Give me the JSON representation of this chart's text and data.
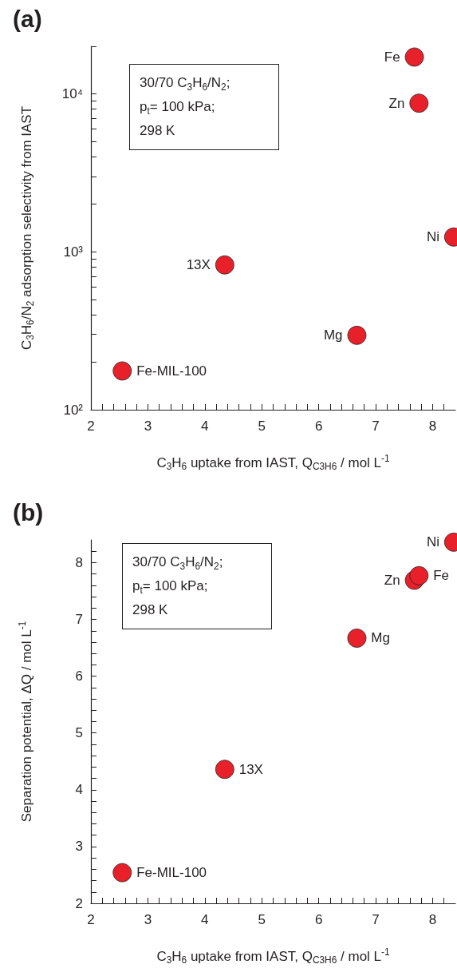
{
  "chart_data": [
    {
      "type": "scatter",
      "marker": "circle",
      "log": "y",
      "xlabel": "C$_{3}$H$_{6}$ uptake from IAST, Q$_{C3H6}$ / mol L$^{-1}$",
      "ylabel": "C$_{3}$H$_{6}$/N$_{2}$ adsorption selectivity from IAST",
      "annotations": [
        "(a)",
        "30/70 C$_{3}$H$_{6}$/N$_{2}$;\np$_{t}$= 100 kPa;\n298 K"
      ],
      "xlim": [
        2,
        8.4
      ],
      "xticks": [
        2,
        {
          "value": 2.2,
          "label": null
        },
        {
          "value": 2.4,
          "label": null
        },
        {
          "value": 2.6,
          "label": null
        },
        {
          "value": 2.8,
          "label": null
        },
        3,
        {
          "value": 3.2,
          "label": null
        },
        {
          "value": 3.4,
          "label": null
        },
        {
          "value": 3.6,
          "label": null
        },
        {
          "value": 3.8,
          "label": null
        },
        4,
        {
          "value": 4.2,
          "label": null
        },
        {
          "value": 4.4,
          "label": null
        },
        {
          "value": 4.6,
          "label": null
        },
        {
          "value": 4.8,
          "label": null
        },
        5,
        {
          "value": 5.2,
          "label": null
        },
        {
          "value": 5.4,
          "label": null
        },
        {
          "value": 5.6,
          "label": null
        },
        {
          "value": 5.8,
          "label": null
        },
        6,
        {
          "value": 6.2,
          "label": null
        },
        {
          "value": 6.4,
          "label": null
        },
        {
          "value": 6.6,
          "label": null
        },
        {
          "value": 6.8,
          "label": null
        },
        7,
        {
          "value": 7.2,
          "label": null
        },
        {
          "value": 7.4,
          "label": null
        },
        {
          "value": 7.6,
          "label": null
        },
        {
          "value": 7.8,
          "label": null
        },
        8,
        {
          "value": 8.2,
          "label": null
        }
      ],
      "ylim": [
        100,
        20000
      ],
      "yticks": [
        {
          "value": 100,
          "label": "10²"
        },
        {
          "value": 200,
          "label": null
        },
        {
          "value": 300,
          "label": null
        },
        {
          "value": 400,
          "label": null
        },
        {
          "value": 500,
          "label": null
        },
        {
          "value": 600,
          "label": null
        },
        {
          "value": 700,
          "label": null
        },
        {
          "value": 800,
          "label": null
        },
        {
          "value": 900,
          "label": null
        },
        {
          "value": 1000,
          "label": "10³"
        },
        {
          "value": 2000,
          "label": null
        },
        {
          "value": 3000,
          "label": null
        },
        {
          "value": 4000,
          "label": null
        },
        {
          "value": 5000,
          "label": null
        },
        {
          "value": 6000,
          "label": null
        },
        {
          "value": 7000,
          "label": null
        },
        {
          "value": 8000,
          "label": null
        },
        {
          "value": 9000,
          "label": null
        },
        {
          "value": 10000,
          "label": "10⁴"
        },
        {
          "value": 20000,
          "label": null
        }
      ],
      "series": [
        {
          "name": "Fe-MIL-100",
          "color": "#e8202a",
          "x": [
            2.55
          ],
          "values": [
            176
          ]
        },
        {
          "name": "13X",
          "color": "#e8202a",
          "x": [
            4.35
          ],
          "values": [
            826
          ]
        },
        {
          "name": "Mg",
          "color": "#e8202a",
          "x": [
            6.67
          ],
          "values": [
            296
          ]
        },
        {
          "name": "Zn",
          "color": "#e8202a",
          "x": [
            7.76
          ],
          "values": [
            8730
          ]
        },
        {
          "name": "Fe",
          "color": "#e8202a",
          "x": [
            7.68
          ],
          "values": [
            17100
          ]
        },
        {
          "name": "Ni",
          "color": "#e8202a",
          "x": [
            8.37
          ],
          "values": [
            1240
          ]
        }
      ]
    },
    {
      "type": "scatter",
      "marker": "circle",
      "xlabel": "C$_{3}$H$_{6}$ uptake from IAST, Q$_{C3H6}$ / mol L$^{-1}$",
      "ylabel": "Separation potential, ΔQ / mol L$^{-1}$",
      "annotations": [
        "(b)",
        "30/70 C$_{3}$H$_{6}$/N$_{2}$;\np$_{t}$= 100 kPa;\n298 K"
      ],
      "xlim": [
        2,
        8.4
      ],
      "xticks": [
        2,
        {
          "value": 2.2,
          "label": null
        },
        {
          "value": 2.4,
          "label": null
        },
        {
          "value": 2.6,
          "label": null
        },
        {
          "value": 2.8,
          "label": null
        },
        3,
        {
          "value": 3.2,
          "label": null
        },
        {
          "value": 3.4,
          "label": null
        },
        {
          "value": 3.6,
          "label": null
        },
        {
          "value": 3.8,
          "label": null
        },
        4,
        {
          "value": 4.2,
          "label": null
        },
        {
          "value": 4.4,
          "label": null
        },
        {
          "value": 4.6,
          "label": null
        },
        {
          "value": 4.8,
          "label": null
        },
        5,
        {
          "value": 5.2,
          "label": null
        },
        {
          "value": 5.4,
          "label": null
        },
        {
          "value": 5.6,
          "label": null
        },
        {
          "value": 5.8,
          "label": null
        },
        6,
        {
          "value": 6.2,
          "label": null
        },
        {
          "value": 6.4,
          "label": null
        },
        {
          "value": 6.6,
          "label": null
        },
        {
          "value": 6.8,
          "label": null
        },
        7,
        {
          "value": 7.2,
          "label": null
        },
        {
          "value": 7.4,
          "label": null
        },
        {
          "value": 7.6,
          "label": null
        },
        {
          "value": 7.8,
          "label": null
        },
        8,
        {
          "value": 8.2,
          "label": null
        }
      ],
      "ylim": [
        2,
        8.4
      ],
      "yticks": [
        2,
        {
          "value": 2.2,
          "label": null
        },
        {
          "value": 2.4,
          "label": null
        },
        {
          "value": 2.6,
          "label": null
        },
        {
          "value": 2.8,
          "label": null
        },
        3,
        {
          "value": 3.2,
          "label": null
        },
        {
          "value": 3.4,
          "label": null
        },
        {
          "value": 3.6,
          "label": null
        },
        {
          "value": 3.8,
          "label": null
        },
        4,
        {
          "value": 4.2,
          "label": null
        },
        {
          "value": 4.4,
          "label": null
        },
        {
          "value": 4.6,
          "label": null
        },
        {
          "value": 4.8,
          "label": null
        },
        5,
        {
          "value": 5.2,
          "label": null
        },
        {
          "value": 5.4,
          "label": null
        },
        {
          "value": 5.6,
          "label": null
        },
        {
          "value": 5.8,
          "label": null
        },
        6,
        {
          "value": 6.2,
          "label": null
        },
        {
          "value": 6.4,
          "label": null
        },
        {
          "value": 6.6,
          "label": null
        },
        {
          "value": 6.8,
          "label": null
        },
        7,
        {
          "value": 7.2,
          "label": null
        },
        {
          "value": 7.4,
          "label": null
        },
        {
          "value": 7.6,
          "label": null
        },
        {
          "value": 7.8,
          "label": null
        },
        8,
        {
          "value": 8.2,
          "label": null
        }
      ],
      "series": [
        {
          "name": "Fe-MIL-100",
          "color": "#e8202a",
          "x": [
            2.55
          ],
          "values": [
            2.54
          ]
        },
        {
          "name": "13X",
          "color": "#e8202a",
          "x": [
            4.35
          ],
          "values": [
            4.36
          ]
        },
        {
          "name": "Mg",
          "color": "#e8202a",
          "x": [
            6.67
          ],
          "values": [
            6.67
          ]
        },
        {
          "name": "Zn",
          "color": "#e8202a",
          "x": [
            7.68
          ],
          "values": [
            7.69
          ]
        },
        {
          "name": "Fe",
          "color": "#e8202a",
          "x": [
            7.76
          ],
          "values": [
            7.77
          ]
        },
        {
          "name": "Ni",
          "color": "#e8202a",
          "x": [
            8.37
          ],
          "values": [
            8.36
          ]
        }
      ]
    }
  ]
}
